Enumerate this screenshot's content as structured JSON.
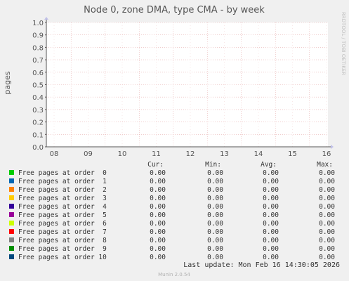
{
  "chart_data": {
    "type": "line",
    "title": "Node 0, zone DMA, type CMA - by week",
    "ylabel": "pages",
    "side_label": "RRDTOOL / TOBI OETIKER",
    "ylim": [
      0,
      1
    ],
    "y_ticks": [
      "0.0",
      "0.1",
      "0.2",
      "0.3",
      "0.4",
      "0.5",
      "0.6",
      "0.7",
      "0.8",
      "0.9",
      "1.0"
    ],
    "x_ticks": [
      "08",
      "09",
      "10",
      "11",
      "12",
      "13",
      "14",
      "15",
      "16"
    ],
    "grid": true,
    "legend_headers": [
      "Cur:",
      "Min:",
      "Avg:",
      "Max:"
    ],
    "series": [
      {
        "name": "Free pages at order  0",
        "color": "#00cc00",
        "cur": "0.00",
        "min": "0.00",
        "avg": "0.00",
        "max": "0.00",
        "values": [
          0,
          0,
          0,
          0,
          0,
          0,
          0,
          0,
          0
        ]
      },
      {
        "name": "Free pages at order  1",
        "color": "#0066b3",
        "cur": "0.00",
        "min": "0.00",
        "avg": "0.00",
        "max": "0.00",
        "values": [
          0,
          0,
          0,
          0,
          0,
          0,
          0,
          0,
          0
        ]
      },
      {
        "name": "Free pages at order  2",
        "color": "#ff8000",
        "cur": "0.00",
        "min": "0.00",
        "avg": "0.00",
        "max": "0.00",
        "values": [
          0,
          0,
          0,
          0,
          0,
          0,
          0,
          0,
          0
        ]
      },
      {
        "name": "Free pages at order  3",
        "color": "#ffcc00",
        "cur": "0.00",
        "min": "0.00",
        "avg": "0.00",
        "max": "0.00",
        "values": [
          0,
          0,
          0,
          0,
          0,
          0,
          0,
          0,
          0
        ]
      },
      {
        "name": "Free pages at order  4",
        "color": "#330099",
        "cur": "0.00",
        "min": "0.00",
        "avg": "0.00",
        "max": "0.00",
        "values": [
          0,
          0,
          0,
          0,
          0,
          0,
          0,
          0,
          0
        ]
      },
      {
        "name": "Free pages at order  5",
        "color": "#990099",
        "cur": "0.00",
        "min": "0.00",
        "avg": "0.00",
        "max": "0.00",
        "values": [
          0,
          0,
          0,
          0,
          0,
          0,
          0,
          0,
          0
        ]
      },
      {
        "name": "Free pages at order  6",
        "color": "#ccff00",
        "cur": "0.00",
        "min": "0.00",
        "avg": "0.00",
        "max": "0.00",
        "values": [
          0,
          0,
          0,
          0,
          0,
          0,
          0,
          0,
          0
        ]
      },
      {
        "name": "Free pages at order  7",
        "color": "#ff0000",
        "cur": "0.00",
        "min": "0.00",
        "avg": "0.00",
        "max": "0.00",
        "values": [
          0,
          0,
          0,
          0,
          0,
          0,
          0,
          0,
          0
        ]
      },
      {
        "name": "Free pages at order  8",
        "color": "#808080",
        "cur": "0.00",
        "min": "0.00",
        "avg": "0.00",
        "max": "0.00",
        "values": [
          0,
          0,
          0,
          0,
          0,
          0,
          0,
          0,
          0
        ]
      },
      {
        "name": "Free pages at order  9",
        "color": "#008f00",
        "cur": "0.00",
        "min": "0.00",
        "avg": "0.00",
        "max": "0.00",
        "values": [
          0,
          0,
          0,
          0,
          0,
          0,
          0,
          0,
          0
        ]
      },
      {
        "name": "Free pages at order 10",
        "color": "#00487d",
        "cur": "0.00",
        "min": "0.00",
        "avg": "0.00",
        "max": "0.00",
        "values": [
          0,
          0,
          0,
          0,
          0,
          0,
          0,
          0,
          0
        ]
      }
    ],
    "last_update": "Last update: Mon Feb 16 14:30:05 2026",
    "footer": "Munin 2.0.54"
  }
}
